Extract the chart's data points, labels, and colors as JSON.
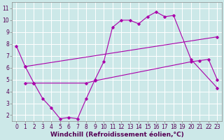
{
  "background_color": "#cce8e8",
  "grid_color": "#ffffff",
  "line_color": "#aa00aa",
  "xlabel": "Windchill (Refroidissement éolien,°C)",
  "xlabel_fontsize": 6.5,
  "xticks": [
    0,
    1,
    2,
    3,
    4,
    5,
    6,
    7,
    8,
    9,
    10,
    11,
    12,
    13,
    14,
    15,
    16,
    17,
    18,
    19,
    20,
    21,
    22,
    23
  ],
  "yticks": [
    2,
    3,
    4,
    5,
    6,
    7,
    8,
    9,
    10,
    11
  ],
  "ylim": [
    1.5,
    11.5
  ],
  "xlim": [
    -0.5,
    23.5
  ],
  "tick_fontsize": 5.5,
  "series": {
    "line1_x": [
      0,
      1,
      2,
      3,
      4,
      5,
      6,
      7,
      8,
      9,
      10,
      11,
      12,
      13,
      14,
      15,
      16,
      17,
      18,
      20,
      23
    ],
    "line1_y": [
      7.8,
      6.1,
      4.7,
      3.4,
      2.6,
      1.7,
      1.8,
      1.7,
      3.4,
      5.0,
      6.5,
      9.4,
      10.0,
      10.0,
      9.7,
      10.3,
      10.7,
      10.3,
      10.4,
      6.7,
      4.3
    ],
    "line2_x": [
      1,
      23
    ],
    "line2_y": [
      6.1,
      8.6
    ],
    "line3_x": [
      1,
      2,
      8,
      9,
      20,
      21,
      22,
      23
    ],
    "line3_y": [
      4.7,
      4.7,
      4.7,
      4.9,
      6.5,
      6.6,
      6.7,
      5.0
    ]
  }
}
